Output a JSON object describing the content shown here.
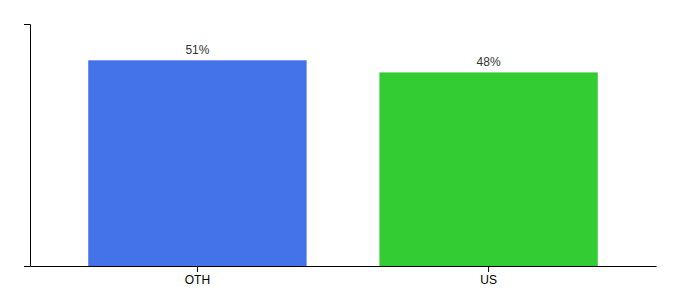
{
  "chart_data": {
    "type": "bar",
    "categories": [
      "OTH",
      "US"
    ],
    "values": [
      51,
      48
    ],
    "value_labels": [
      "51%",
      "48%"
    ],
    "colors": [
      "#4472E8",
      "#33CC33"
    ],
    "ylim": [
      0,
      60
    ],
    "yticks": [],
    "tick_labels": "x",
    "data_labels": true,
    "grid": false
  }
}
